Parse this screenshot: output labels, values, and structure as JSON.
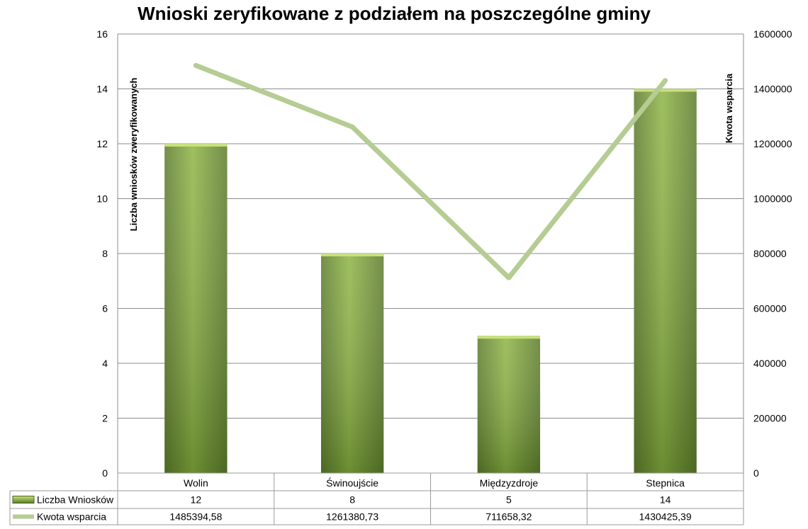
{
  "chart_data": {
    "type": "bar",
    "title": "Wnioski zeryfikowane z podziałem na poszczególne gminy",
    "categories": [
      "Wolin",
      "Świnoujście",
      "Międzyzdroje",
      "Stepnica"
    ],
    "series": [
      {
        "name": "Liczba Wniosków",
        "type": "bar",
        "axis": "left",
        "values": [
          12,
          8,
          5,
          14
        ],
        "labels": [
          "12",
          "8",
          "5",
          "14"
        ],
        "color": "#8db443"
      },
      {
        "name": "Kwota wsparcia",
        "type": "line",
        "axis": "right",
        "values": [
          1485394.58,
          1261380.73,
          711658.32,
          1430425.39
        ],
        "labels": [
          "1485394,58",
          "1261380,73",
          "711658,32",
          "1430425,39"
        ],
        "color": "#b5cc93"
      }
    ],
    "ylabel": "Liczba wniosków zweryfikowanych",
    "y2label": "Kwota wsparcia",
    "ylim": [
      0,
      16
    ],
    "y2lim": [
      0,
      1600000
    ],
    "yticks": [
      "0",
      "2",
      "4",
      "6",
      "8",
      "10",
      "12",
      "14",
      "16"
    ],
    "y2ticks": [
      "0",
      "200000",
      "400000",
      "600000",
      "800000",
      "1000000",
      "1200000",
      "1400000",
      "1600000"
    ],
    "grid": true,
    "data_table": true
  }
}
